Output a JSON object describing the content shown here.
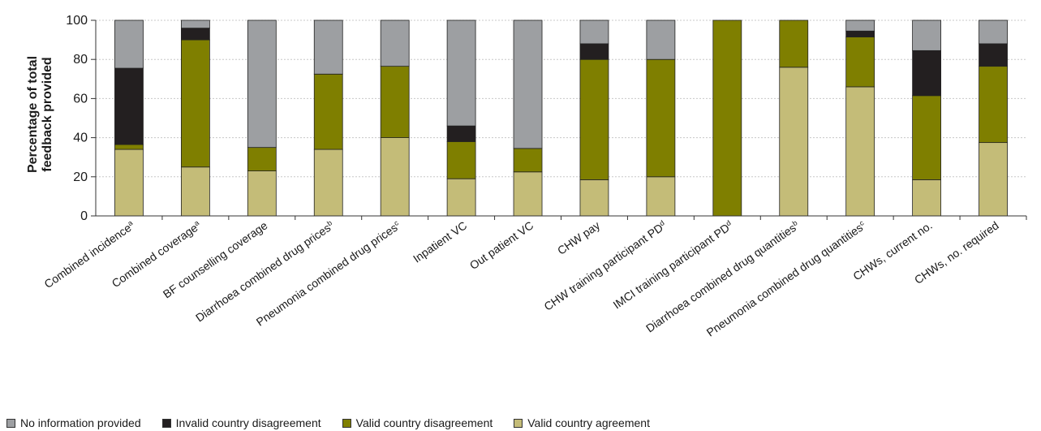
{
  "chart_data": {
    "type": "bar",
    "stacked": true,
    "title": "",
    "xlabel": "",
    "ylabel": "Percentage of total\nfeedback provided",
    "ylim": [
      0,
      100
    ],
    "yticks": [
      0,
      20,
      40,
      60,
      80,
      100
    ],
    "grid": true,
    "legend_position": "bottom-left",
    "categories": [
      {
        "label": "Combined incidence",
        "sup": "a"
      },
      {
        "label": "Combined coverage",
        "sup": "a"
      },
      {
        "label": "BF counselling coverage",
        "sup": ""
      },
      {
        "label": "Diarrhoea combined drug prices",
        "sup": "b"
      },
      {
        "label": "Pneumonia combined drug prices",
        "sup": "c"
      },
      {
        "label": "Inpatient VC",
        "sup": ""
      },
      {
        "label": "Out patient VC",
        "sup": ""
      },
      {
        "label": "CHW pay",
        "sup": ""
      },
      {
        "label": "CHW training participant PD",
        "sup": "d"
      },
      {
        "label": "IMCI training participant PD",
        "sup": "d"
      },
      {
        "label": "Diarrhoea combined drug quantities",
        "sup": "b"
      },
      {
        "label": "Pneumonia combined drug quantities",
        "sup": "c"
      },
      {
        "label": "CHWs, current no.",
        "sup": ""
      },
      {
        "label": "CHWs, no. required",
        "sup": ""
      }
    ],
    "series": [
      {
        "name": "Valid country agreement",
        "color": "#c4bc78",
        "values": [
          34,
          25,
          23,
          34,
          40,
          19,
          22.5,
          18.5,
          20,
          0,
          76,
          66,
          18.5,
          37.5
        ]
      },
      {
        "name": "Valid country disagreement",
        "color": "#7f7f00",
        "values": [
          2.5,
          65,
          12,
          38.5,
          36.5,
          19,
          12,
          61.5,
          60,
          100,
          24,
          25.5,
          43,
          39
        ]
      },
      {
        "name": "Invalid country disagreement",
        "color": "#231f20",
        "values": [
          39,
          6,
          0,
          0,
          0,
          8,
          0,
          8,
          0,
          0,
          0,
          3,
          23,
          11.5
        ]
      },
      {
        "name": "No information provided",
        "color": "#9d9fa2",
        "values": [
          24.5,
          4,
          65,
          27.5,
          23.5,
          54,
          65.5,
          12,
          20,
          0,
          0,
          5.5,
          15.5,
          12
        ]
      }
    ],
    "legend_order": [
      "No information provided",
      "Invalid country disagreement",
      "Valid country disagreement",
      "Valid country agreement"
    ]
  }
}
